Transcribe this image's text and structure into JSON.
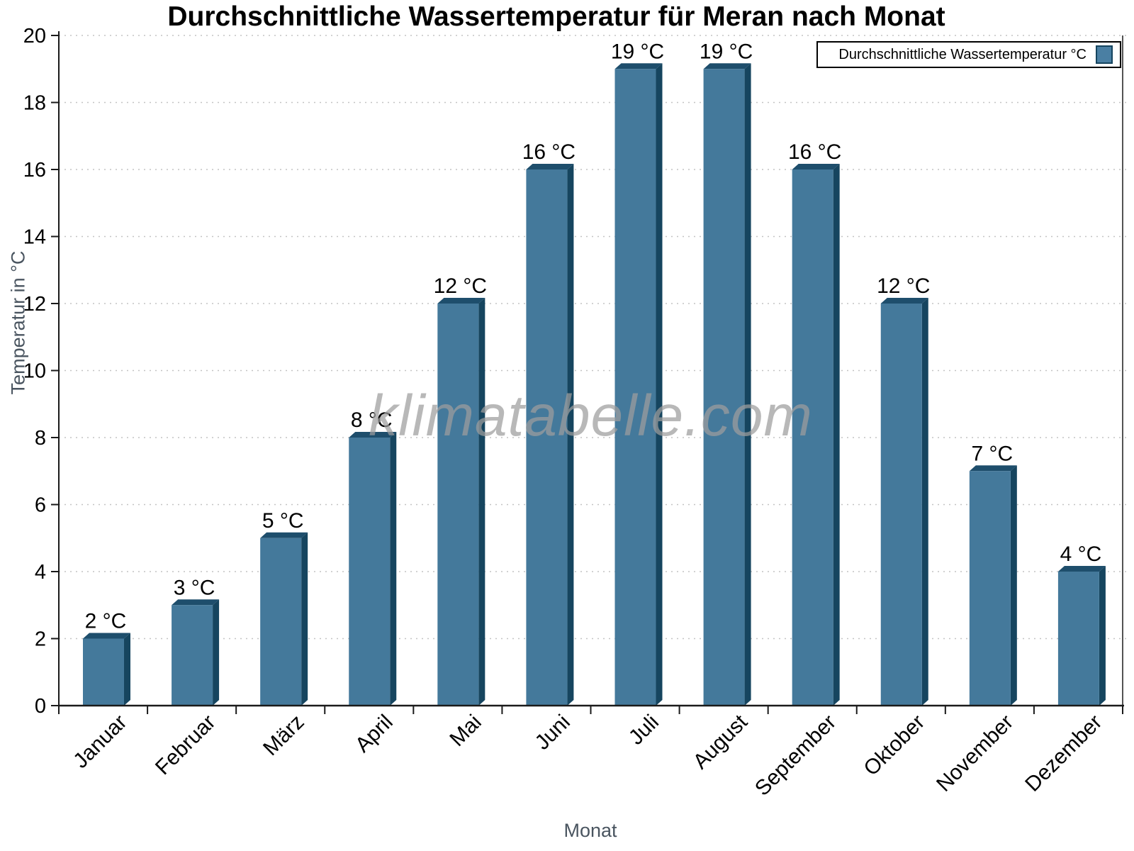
{
  "watermark": "klimatabelle.com",
  "chart_data": {
    "type": "bar",
    "title": "Durchschnittliche Wassertemperatur für Meran nach Monat",
    "categories": [
      "Januar",
      "Februar",
      "März",
      "April",
      "Mai",
      "Juni",
      "Juli",
      "August",
      "September",
      "Oktober",
      "November",
      "Dezember"
    ],
    "values": [
      2,
      3,
      5,
      8,
      12,
      16,
      19,
      19,
      16,
      12,
      7,
      4
    ],
    "value_labels": [
      "2 °C",
      "3 °C",
      "5 °C",
      "8 °C",
      "12 °C",
      "16 °C",
      "19 °C",
      "19 °C",
      "16 °C",
      "12 °C",
      "7 °C",
      "4 °C"
    ],
    "legend_label": "Durchschnittliche Wassertemperatur °C",
    "legend_position": "top-right",
    "xlabel": "Monat",
    "ylabel": "Temperatur in °C",
    "ylim": [
      0,
      20
    ],
    "ytick_step": 2,
    "yticks": [
      0,
      2,
      4,
      6,
      8,
      10,
      12,
      14,
      16,
      18,
      20
    ],
    "grid": "horizontal-dotted",
    "colors": {
      "bar_face": "#44799B",
      "bar_side": "#16455F",
      "bar_top": "#1E4E6C",
      "legend_swatch": "#4A7FA3",
      "grid_line": "#C3C3C3",
      "axis": "#1A1A1A",
      "axis_title": "#4A5560",
      "watermark": "#9E9E9E",
      "text": "#000000"
    }
  }
}
